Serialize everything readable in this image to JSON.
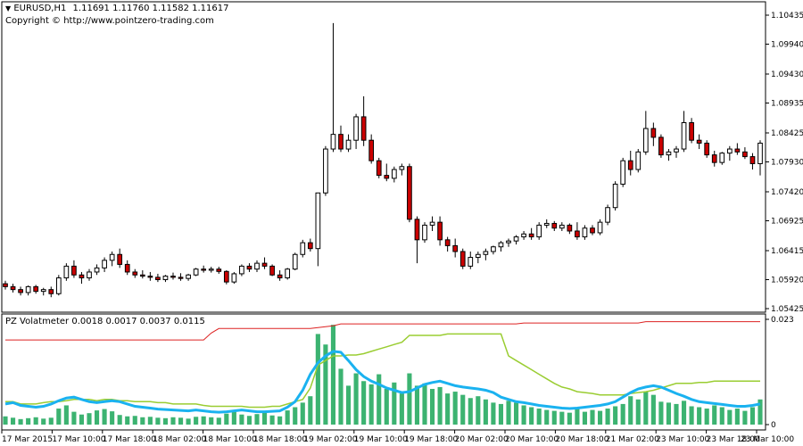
{
  "header": {
    "arrow": "▼",
    "symbol": "EURUSD,H1",
    "ohlc": "1.11691 1.11760 1.11582 1.11617",
    "copyright": "Copyright © http://www.pointzero-trading.com"
  },
  "indicator": {
    "name": "PZ Volatmeter",
    "values": "0.0018 0.0017 0.0037 0.0115",
    "axis_labels": [
      "0.023",
      "0"
    ]
  },
  "colors": {
    "bull_body": "#ffffff",
    "bear_body": "#cc0000",
    "wick": "#000000",
    "volume_bar": "#3cb371",
    "blue_line": "#1ab2f0",
    "green_line": "#9acd32",
    "red_line": "#dd2222",
    "grid": "#000000"
  },
  "price_axis": {
    "labels": [
      "1.10435",
      "1.09940",
      "1.09430",
      "1.08935",
      "1.08425",
      "1.07930",
      "1.07420",
      "1.06925",
      "1.06415",
      "1.05920",
      "1.05425"
    ],
    "min": 1.05425,
    "max": 1.10435
  },
  "time_axis": {
    "labels": [
      "17 Mar 2015",
      "17 Mar 10:00",
      "17 Mar 18:00",
      "18 Mar 02:00",
      "18 Mar 10:00",
      "18 Mar 18:00",
      "19 Mar 02:00",
      "19 Mar 10:00",
      "19 Mar 18:00",
      "20 Mar 02:00",
      "20 Mar 10:00",
      "20 Mar 18:00",
      "21 Mar 02:00",
      "23 Mar 10:00",
      "23 Mar 18:00",
      "23 Mar 10:00"
    ]
  },
  "chart_data": {
    "type": "candlestick",
    "symbol": "EURUSD,H1",
    "candles_ohlc": [
      [
        1.0585,
        1.059,
        1.0575,
        1.058
      ],
      [
        1.058,
        1.0585,
        1.057,
        1.0575
      ],
      [
        1.0575,
        1.058,
        1.0565,
        1.057
      ],
      [
        1.057,
        1.0582,
        1.0565,
        1.058
      ],
      [
        1.058,
        1.0583,
        1.0568,
        1.0572
      ],
      [
        1.0572,
        1.0578,
        1.0565,
        1.0575
      ],
      [
        1.0575,
        1.058,
        1.0562,
        1.0568
      ],
      [
        1.0568,
        1.06,
        1.0565,
        1.0595
      ],
      [
        1.0595,
        1.062,
        1.059,
        1.0615
      ],
      [
        1.0615,
        1.0625,
        1.0595,
        1.06
      ],
      [
        1.06,
        1.0605,
        1.0585,
        1.0595
      ],
      [
        1.0595,
        1.061,
        1.059,
        1.0605
      ],
      [
        1.0605,
        1.0618,
        1.06,
        1.0612
      ],
      [
        1.0612,
        1.063,
        1.0605,
        1.0625
      ],
      [
        1.0625,
        1.064,
        1.0615,
        1.0635
      ],
      [
        1.0635,
        1.0645,
        1.0612,
        1.0618
      ],
      [
        1.0618,
        1.0625,
        1.06,
        1.0605
      ],
      [
        1.0605,
        1.061,
        1.0595,
        1.06
      ],
      [
        1.06,
        1.0608,
        1.0594,
        1.0598
      ],
      [
        1.0598,
        1.0605,
        1.059,
        1.0596
      ],
      [
        1.0596,
        1.0602,
        1.0588,
        1.0592
      ],
      [
        1.0592,
        1.06,
        1.0588,
        1.0598
      ],
      [
        1.0598,
        1.0604,
        1.0592,
        1.0596
      ],
      [
        1.0596,
        1.0603,
        1.059,
        1.0594
      ],
      [
        1.0594,
        1.0602,
        1.059,
        1.06
      ],
      [
        1.06,
        1.0612,
        1.0598,
        1.061
      ],
      [
        1.061,
        1.0616,
        1.0604,
        1.0608
      ],
      [
        1.0608,
        1.0614,
        1.0604,
        1.061
      ],
      [
        1.061,
        1.0614,
        1.0602,
        1.0606
      ],
      [
        1.0606,
        1.0608,
        1.0584,
        1.0588
      ],
      [
        1.0588,
        1.0605,
        1.0585,
        1.0602
      ],
      [
        1.0602,
        1.0618,
        1.0598,
        1.0615
      ],
      [
        1.0615,
        1.062,
        1.0605,
        1.061
      ],
      [
        1.061,
        1.0625,
        1.0605,
        1.062
      ],
      [
        1.062,
        1.063,
        1.061,
        1.0615
      ],
      [
        1.0615,
        1.0618,
        1.0598,
        1.06
      ],
      [
        1.06,
        1.0608,
        1.059,
        1.0595
      ],
      [
        1.0595,
        1.0612,
        1.0592,
        1.061
      ],
      [
        1.061,
        1.0638,
        1.0608,
        1.0635
      ],
      [
        1.0635,
        1.066,
        1.063,
        1.0655
      ],
      [
        1.0655,
        1.0662,
        1.064,
        1.0645
      ],
      [
        1.0645,
        1.071,
        1.0615,
        1.074
      ],
      [
        1.074,
        1.082,
        1.0735,
        1.0815
      ],
      [
        1.0815,
        1.103,
        1.081,
        1.084
      ],
      [
        1.084,
        1.0855,
        1.081,
        1.0815
      ],
      [
        1.0815,
        1.084,
        1.081,
        1.083
      ],
      [
        1.083,
        1.0875,
        1.0815,
        1.087
      ],
      [
        1.087,
        1.0905,
        1.082,
        1.083
      ],
      [
        1.083,
        1.084,
        1.079,
        1.0795
      ],
      [
        1.0795,
        1.08,
        1.0765,
        1.077
      ],
      [
        1.077,
        1.079,
        1.076,
        1.0765
      ],
      [
        1.0765,
        1.0785,
        1.0758,
        1.078
      ],
      [
        1.078,
        1.079,
        1.077,
        1.0785
      ],
      [
        1.0785,
        1.079,
        1.069,
        1.0695
      ],
      [
        1.0695,
        1.07,
        1.062,
        1.066
      ],
      [
        1.066,
        1.069,
        1.0655,
        1.0685
      ],
      [
        1.0685,
        1.07,
        1.0675,
        1.069
      ],
      [
        1.069,
        1.07,
        1.065,
        1.066
      ],
      [
        1.066,
        1.0665,
        1.064,
        1.065
      ],
      [
        1.065,
        1.0662,
        1.063,
        1.064
      ],
      [
        1.064,
        1.0645,
        1.061,
        1.0615
      ],
      [
        1.0615,
        1.064,
        1.061,
        1.063
      ],
      [
        1.063,
        1.064,
        1.062,
        1.0635
      ],
      [
        1.0635,
        1.0645,
        1.0625,
        1.064
      ],
      [
        1.064,
        1.065,
        1.0635,
        1.0648
      ],
      [
        1.0648,
        1.0658,
        1.064,
        1.0655
      ],
      [
        1.0655,
        1.0662,
        1.0648,
        1.0658
      ],
      [
        1.0658,
        1.0668,
        1.0652,
        1.0665
      ],
      [
        1.0665,
        1.0675,
        1.066,
        1.067
      ],
      [
        1.067,
        1.068,
        1.066,
        1.0665
      ],
      [
        1.0665,
        1.069,
        1.066,
        1.0685
      ],
      [
        1.0685,
        1.0695,
        1.068,
        1.0688
      ],
      [
        1.0688,
        1.0692,
        1.0675,
        1.068
      ],
      [
        1.068,
        1.069,
        1.0675,
        1.0685
      ],
      [
        1.0685,
        1.0688,
        1.067,
        1.0675
      ],
      [
        1.0675,
        1.069,
        1.066,
        1.0665
      ],
      [
        1.0665,
        1.0685,
        1.066,
        1.068
      ],
      [
        1.068,
        1.0685,
        1.0668,
        1.0672
      ],
      [
        1.0672,
        1.0695,
        1.0668,
        1.069
      ],
      [
        1.069,
        1.072,
        1.0685,
        1.0715
      ],
      [
        1.0715,
        1.076,
        1.071,
        1.0755
      ],
      [
        1.0755,
        1.08,
        1.075,
        1.0795
      ],
      [
        1.0795,
        1.0812,
        1.077,
        1.078
      ],
      [
        1.078,
        1.0815,
        1.0775,
        1.081
      ],
      [
        1.081,
        1.088,
        1.0805,
        1.085
      ],
      [
        1.085,
        1.086,
        1.082,
        1.0835
      ],
      [
        1.0835,
        1.084,
        1.08,
        1.0805
      ],
      [
        1.0805,
        1.0815,
        1.0795,
        1.081
      ],
      [
        1.081,
        1.082,
        1.08,
        1.0815
      ],
      [
        1.0815,
        1.088,
        1.081,
        1.086
      ],
      [
        1.086,
        1.0868,
        1.0825,
        1.083
      ],
      [
        1.083,
        1.084,
        1.0815,
        1.0825
      ],
      [
        1.0825,
        1.083,
        1.08,
        1.0805
      ],
      [
        1.0805,
        1.0812,
        1.0785,
        1.0792
      ],
      [
        1.0792,
        1.081,
        1.0788,
        1.0808
      ],
      [
        1.0808,
        1.082,
        1.0795,
        1.0815
      ],
      [
        1.0815,
        1.0825,
        1.0805,
        1.081
      ],
      [
        1.081,
        1.0818,
        1.0798,
        1.0802
      ],
      [
        1.0802,
        1.0808,
        1.078,
        1.079
      ],
      [
        1.079,
        1.083,
        1.077,
        1.0825
      ]
    ],
    "indicator": {
      "name": "PZ Volatmeter",
      "ylim": [
        0,
        0.023
      ],
      "volume_bars": [
        0.0018,
        0.0015,
        0.0012,
        0.0014,
        0.0016,
        0.0013,
        0.0015,
        0.0035,
        0.0042,
        0.0028,
        0.0022,
        0.0025,
        0.0031,
        0.0034,
        0.0029,
        0.0021,
        0.0018,
        0.0019,
        0.0016,
        0.0017,
        0.0015,
        0.0014,
        0.0016,
        0.0015,
        0.0013,
        0.0017,
        0.0018,
        0.0016,
        0.0015,
        0.0024,
        0.0028,
        0.0022,
        0.0019,
        0.0023,
        0.0026,
        0.002,
        0.0018,
        0.0031,
        0.0038,
        0.0048,
        0.0062,
        0.0198,
        0.0175,
        0.0218,
        0.0122,
        0.0085,
        0.0112,
        0.0095,
        0.0088,
        0.011,
        0.0078,
        0.0092,
        0.0068,
        0.0112,
        0.0085,
        0.009,
        0.0078,
        0.0082,
        0.0068,
        0.0072,
        0.0065,
        0.0058,
        0.0062,
        0.0055,
        0.0048,
        0.0045,
        0.0052,
        0.0048,
        0.0042,
        0.0038,
        0.0035,
        0.0032,
        0.003,
        0.0028,
        0.0026,
        0.0035,
        0.0028,
        0.0032,
        0.003,
        0.0035,
        0.004,
        0.0045,
        0.0062,
        0.0055,
        0.0072,
        0.0065,
        0.005,
        0.0048,
        0.0045,
        0.0052,
        0.004,
        0.0038,
        0.0035,
        0.0042,
        0.0038,
        0.0032,
        0.0035,
        0.003,
        0.0038,
        0.0055
      ],
      "blue_line": [
        0.0045,
        0.0048,
        0.0042,
        0.004,
        0.0038,
        0.004,
        0.0045,
        0.0052,
        0.0058,
        0.006,
        0.0055,
        0.005,
        0.0048,
        0.005,
        0.0052,
        0.005,
        0.0045,
        0.004,
        0.0038,
        0.0036,
        0.0034,
        0.0033,
        0.0032,
        0.0031,
        0.003,
        0.0032,
        0.003,
        0.0028,
        0.0027,
        0.0028,
        0.003,
        0.0032,
        0.003,
        0.0028,
        0.0028,
        0.0029,
        0.003,
        0.0038,
        0.005,
        0.0075,
        0.011,
        0.0135,
        0.015,
        0.016,
        0.0158,
        0.014,
        0.012,
        0.0105,
        0.0095,
        0.0088,
        0.008,
        0.0075,
        0.007,
        0.0072,
        0.008,
        0.0088,
        0.0092,
        0.0095,
        0.009,
        0.0085,
        0.0082,
        0.008,
        0.0078,
        0.0075,
        0.007,
        0.006,
        0.0055,
        0.005,
        0.0048,
        0.0045,
        0.0042,
        0.004,
        0.0038,
        0.0036,
        0.0035,
        0.0036,
        0.0038,
        0.004,
        0.0042,
        0.0045,
        0.005,
        0.006,
        0.007,
        0.0078,
        0.0082,
        0.0085,
        0.0082,
        0.0075,
        0.0068,
        0.0062,
        0.0055,
        0.005,
        0.0048,
        0.0046,
        0.0044,
        0.0042,
        0.004,
        0.004,
        0.0042,
        0.0045
      ],
      "green_line": [
        0.005,
        0.005,
        0.0045,
        0.0045,
        0.0045,
        0.0048,
        0.005,
        0.005,
        0.0052,
        0.0055,
        0.0055,
        0.0055,
        0.0052,
        0.0055,
        0.0055,
        0.0052,
        0.0052,
        0.005,
        0.005,
        0.005,
        0.0048,
        0.0048,
        0.0045,
        0.0045,
        0.0045,
        0.0045,
        0.0042,
        0.004,
        0.004,
        0.004,
        0.004,
        0.004,
        0.0038,
        0.0038,
        0.0038,
        0.004,
        0.004,
        0.0045,
        0.005,
        0.0055,
        0.008,
        0.013,
        0.014,
        0.015,
        0.015,
        0.0152,
        0.0152,
        0.0155,
        0.016,
        0.0165,
        0.017,
        0.0175,
        0.018,
        0.0195,
        0.0195,
        0.0195,
        0.0195,
        0.0195,
        0.0198,
        0.0198,
        0.0198,
        0.0198,
        0.0198,
        0.0198,
        0.0198,
        0.0198,
        0.015,
        0.014,
        0.013,
        0.012,
        0.011,
        0.01,
        0.009,
        0.0082,
        0.0078,
        0.0072,
        0.007,
        0.0068,
        0.0065,
        0.0065,
        0.0065,
        0.0065,
        0.0068,
        0.007,
        0.0072,
        0.0075,
        0.008,
        0.0085,
        0.009,
        0.009,
        0.009,
        0.0092,
        0.0092,
        0.0095,
        0.0095,
        0.0095,
        0.0095,
        0.0095,
        0.0095,
        0.0095
      ],
      "red_line": [
        0.0185,
        0.0185,
        0.0185,
        0.0185,
        0.0185,
        0.0185,
        0.0185,
        0.0185,
        0.0185,
        0.0185,
        0.0185,
        0.0185,
        0.0185,
        0.0185,
        0.0185,
        0.0185,
        0.0185,
        0.0185,
        0.0185,
        0.0185,
        0.0185,
        0.0185,
        0.0185,
        0.0185,
        0.0185,
        0.0185,
        0.0185,
        0.02,
        0.021,
        0.021,
        0.021,
        0.021,
        0.021,
        0.021,
        0.021,
        0.021,
        0.021,
        0.021,
        0.021,
        0.021,
        0.021,
        0.0212,
        0.0214,
        0.0216,
        0.022,
        0.022,
        0.022,
        0.022,
        0.022,
        0.022,
        0.022,
        0.022,
        0.022,
        0.022,
        0.022,
        0.022,
        0.022,
        0.022,
        0.022,
        0.022,
        0.022,
        0.022,
        0.022,
        0.022,
        0.022,
        0.022,
        0.022,
        0.022,
        0.0222,
        0.0222,
        0.0222,
        0.0222,
        0.0222,
        0.0222,
        0.0222,
        0.0222,
        0.0222,
        0.0222,
        0.0222,
        0.0222,
        0.0222,
        0.0222,
        0.0222,
        0.0222,
        0.0225,
        0.0225,
        0.0225,
        0.0225,
        0.0225,
        0.0225,
        0.0225,
        0.0225,
        0.0225,
        0.0225,
        0.0225,
        0.0225,
        0.0225,
        0.0225,
        0.0225,
        0.0225
      ]
    }
  }
}
